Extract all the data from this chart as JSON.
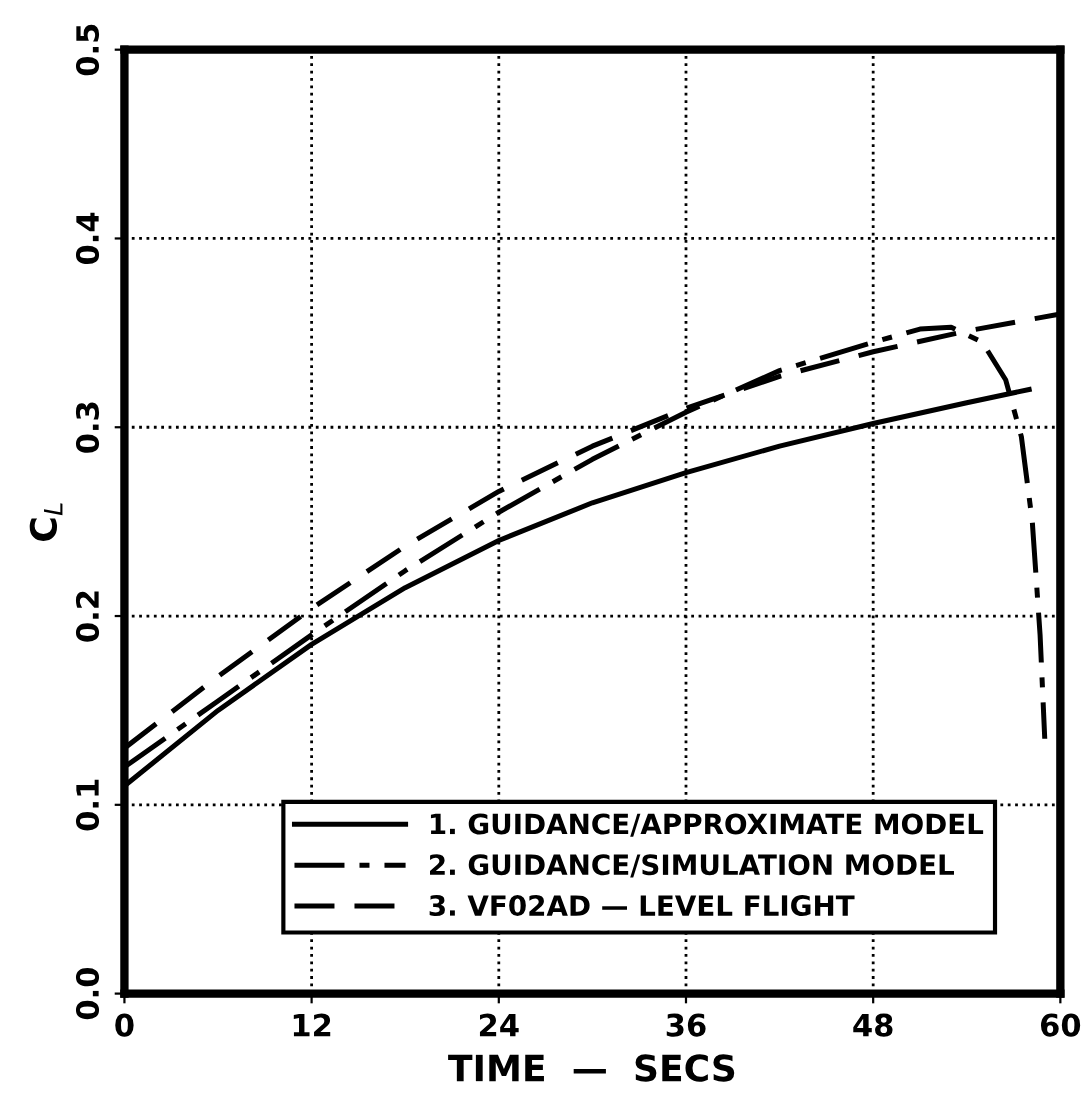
{
  "chart_data": {
    "type": "line",
    "xlabel": "TIME  —  SECS",
    "ylabel": "C$_{L}$",
    "xlim": [
      0,
      60
    ],
    "xticks": [
      0,
      12,
      24,
      36,
      48,
      60
    ],
    "ylim": [
      0,
      0.5
    ],
    "yticks": [
      {
        "value": 0,
        "label": "0.0"
      },
      0.1,
      0.2,
      0.3,
      0.4,
      0.5
    ],
    "grid": true,
    "legend": "bottom",
    "series": [
      {
        "name": "1. GUIDANCE/APPROXIMATE MODEL",
        "color": "#000000",
        "line_style": "solid",
        "x": [
          0,
          6,
          12,
          18,
          24,
          30,
          36,
          42,
          48,
          54,
          58
        ],
        "values": [
          0.11,
          0.15,
          0.185,
          0.215,
          0.24,
          0.26,
          0.276,
          0.29,
          0.302,
          0.313,
          0.32
        ]
      },
      {
        "name": "2. GUIDANCE/SIMULATION MODEL",
        "color": "#000000",
        "line_style": "dashdot",
        "x": [
          0,
          6,
          12,
          18,
          24,
          30,
          36,
          42,
          48,
          51,
          53,
          55,
          56.5,
          57.5,
          58.2,
          58.7,
          59
        ],
        "values": [
          0.12,
          0.155,
          0.19,
          0.224,
          0.255,
          0.283,
          0.308,
          0.33,
          0.345,
          0.352,
          0.353,
          0.345,
          0.325,
          0.295,
          0.25,
          0.19,
          0.135
        ]
      },
      {
        "name": "3. VF02AD — LEVEL FLIGHT",
        "color": "#000000",
        "line_style": "dashed",
        "x": [
          0,
          6,
          12,
          18,
          24,
          30,
          36,
          42,
          48,
          54,
          60
        ],
        "values": [
          0.13,
          0.168,
          0.204,
          0.237,
          0.266,
          0.29,
          0.31,
          0.327,
          0.34,
          0.351,
          0.36
        ]
      }
    ]
  }
}
